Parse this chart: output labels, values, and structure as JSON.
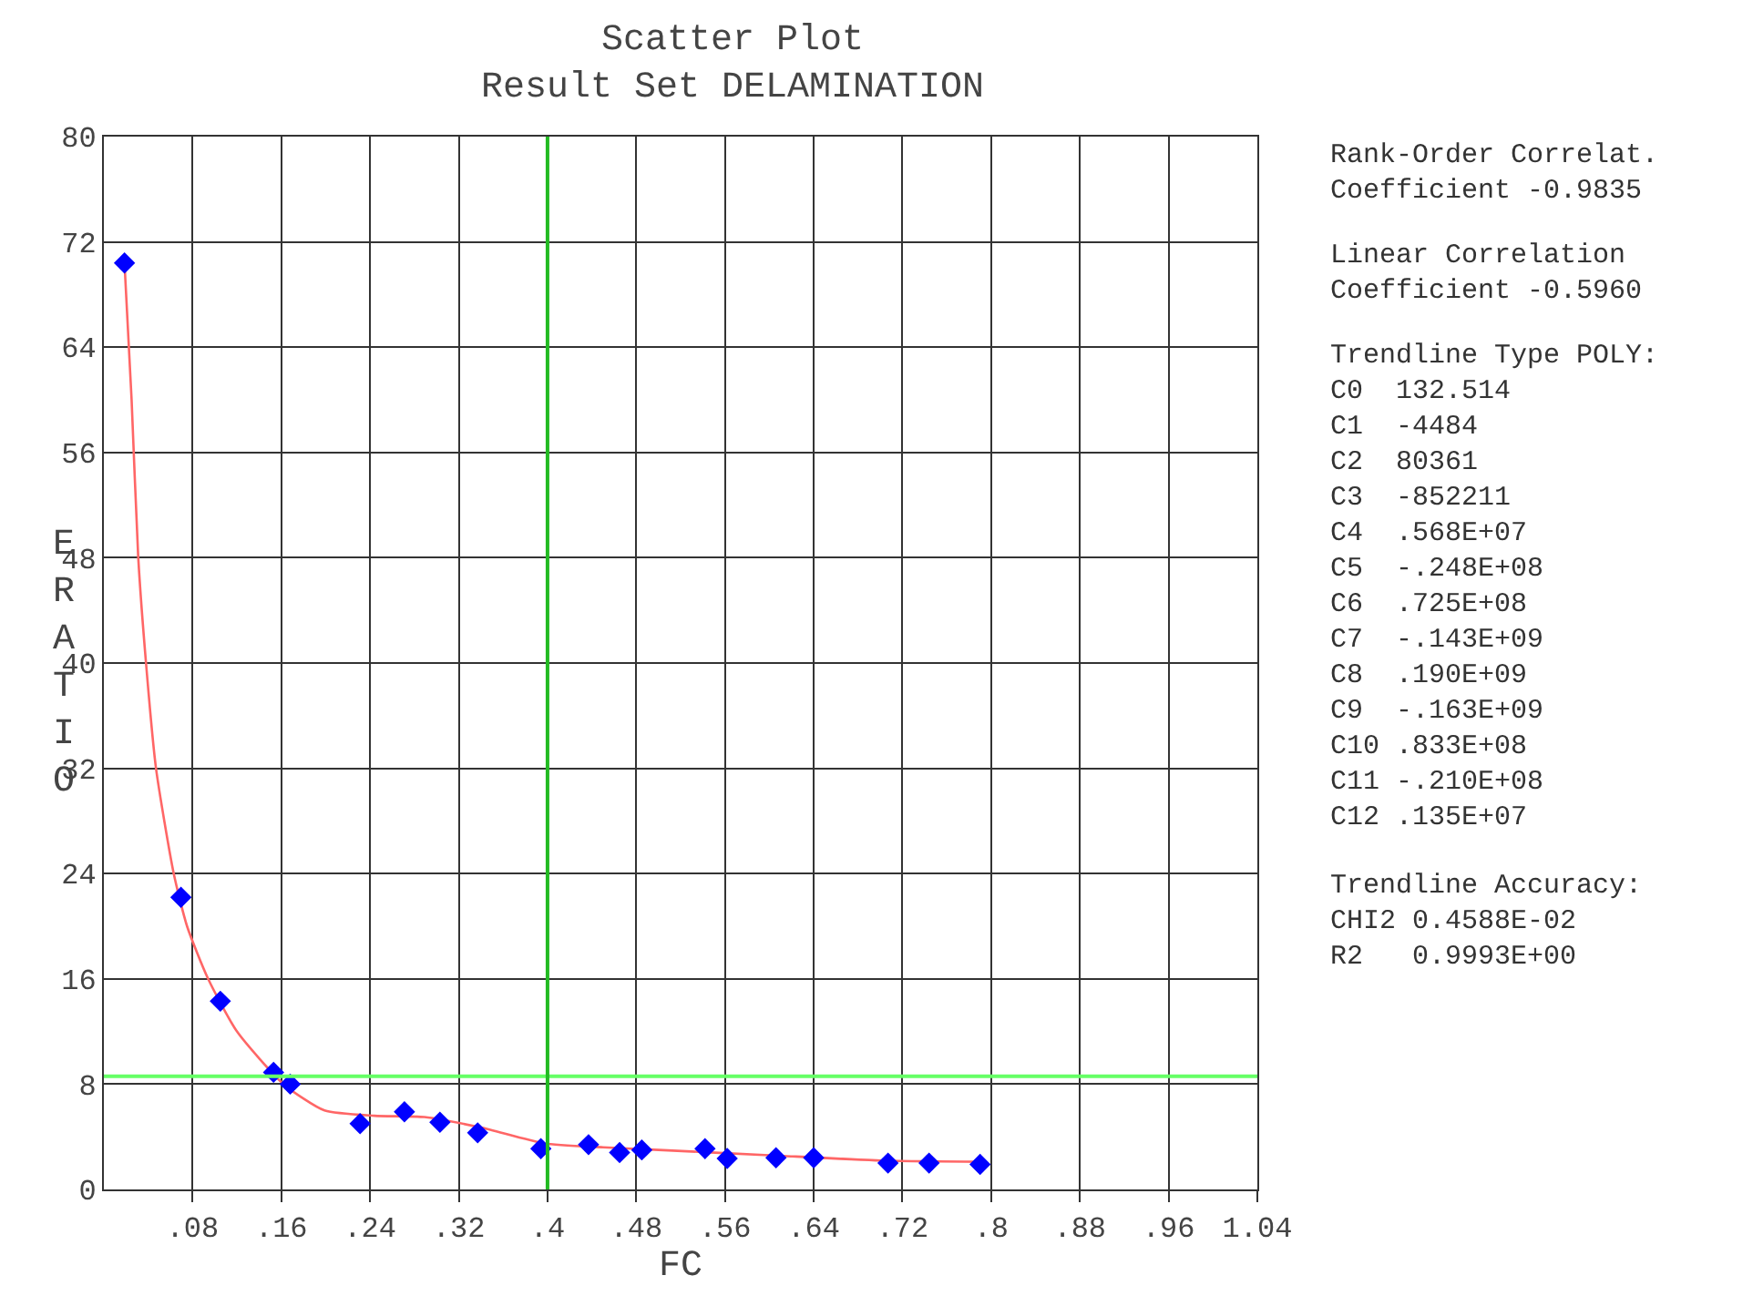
{
  "chart_data": {
    "type": "scatter",
    "title": "Scatter Plot\nResult Set DELAMINATION",
    "xlabel": "FC",
    "ylabel": "ERATIO",
    "xlim": [
      0,
      1.04
    ],
    "ylim": [
      0,
      80
    ],
    "xticks": [
      {
        "value": 0.08,
        "label": ".08"
      },
      {
        "value": 0.16,
        "label": ".16"
      },
      {
        "value": 0.24,
        "label": ".24"
      },
      {
        "value": 0.32,
        "label": ".32"
      },
      {
        "value": 0.4,
        "label": ".4"
      },
      {
        "value": 0.48,
        "label": ".48"
      },
      {
        "value": 0.56,
        "label": ".56"
      },
      {
        "value": 0.64,
        "label": ".64"
      },
      {
        "value": 0.72,
        "label": ".72"
      },
      {
        "value": 0.8,
        "label": ".8"
      },
      {
        "value": 0.88,
        "label": ".88"
      },
      {
        "value": 0.96,
        "label": ".96"
      },
      {
        "value": 1.04,
        "label": "1.04"
      }
    ],
    "yticks": [
      0,
      8,
      16,
      24,
      32,
      40,
      48,
      56,
      64,
      72,
      80
    ],
    "grid": true,
    "marker": "diamond",
    "series": [
      {
        "type": "line",
        "color": "#ff6666",
        "marker": "none",
        "line_style": "solid",
        "x": [
          0.0186,
          0.025,
          0.031,
          0.038,
          0.047,
          0.063,
          0.075,
          0.094,
          0.12,
          0.162,
          0.199,
          0.244,
          0.289,
          0.34,
          0.397,
          0.45,
          0.5,
          0.6,
          0.7,
          0.79
        ],
        "values": [
          70.4,
          60,
          48,
          40,
          32,
          24,
          20,
          16,
          12,
          8,
          6.0,
          5.6,
          5.5,
          4.7,
          3.5,
          3.2,
          3.0,
          2.6,
          2.2,
          2.1
        ]
      },
      {
        "color": "#0000ff",
        "x": [
          0.0186,
          0.0695,
          0.105,
          0.153,
          0.168,
          0.231,
          0.271,
          0.303,
          0.337,
          0.394,
          0.437,
          0.465,
          0.485,
          0.542,
          0.562,
          0.606,
          0.64,
          0.707,
          0.744,
          0.79
        ],
        "values": [
          70.4,
          22.2,
          14.3,
          8.9,
          8.0,
          5.0,
          5.9,
          5.1,
          4.3,
          3.1,
          3.4,
          2.8,
          3.0,
          3.1,
          2.35,
          2.4,
          2.4,
          2.0,
          2.0,
          1.9
        ]
      }
    ],
    "ref_lines": [
      {
        "axis": "y",
        "value": 8.6,
        "color": "#66ff66"
      },
      {
        "axis": "x",
        "value": 0.4,
        "color": "#22bb22"
      }
    ],
    "annotations": [
      "Rank-Order Correlat.\nCoefficient -0.9835",
      "Linear Correlation\nCoefficient -0.5960",
      "Trendline Type POLY:\nC0  132.514\nC1  -4484\nC2  80361\nC3  -852211\nC4  .568E+07\nC5  -.248E+08\nC6  .725E+08\nC7  -.143E+09\nC8  .190E+09\nC9  -.163E+09\nC10 .833E+08\nC11 -.210E+08\nC12 .135E+07",
      "Trendline Accuracy:\nCHI2 0.4588E-02\nR2   0.9993E+00"
    ]
  }
}
